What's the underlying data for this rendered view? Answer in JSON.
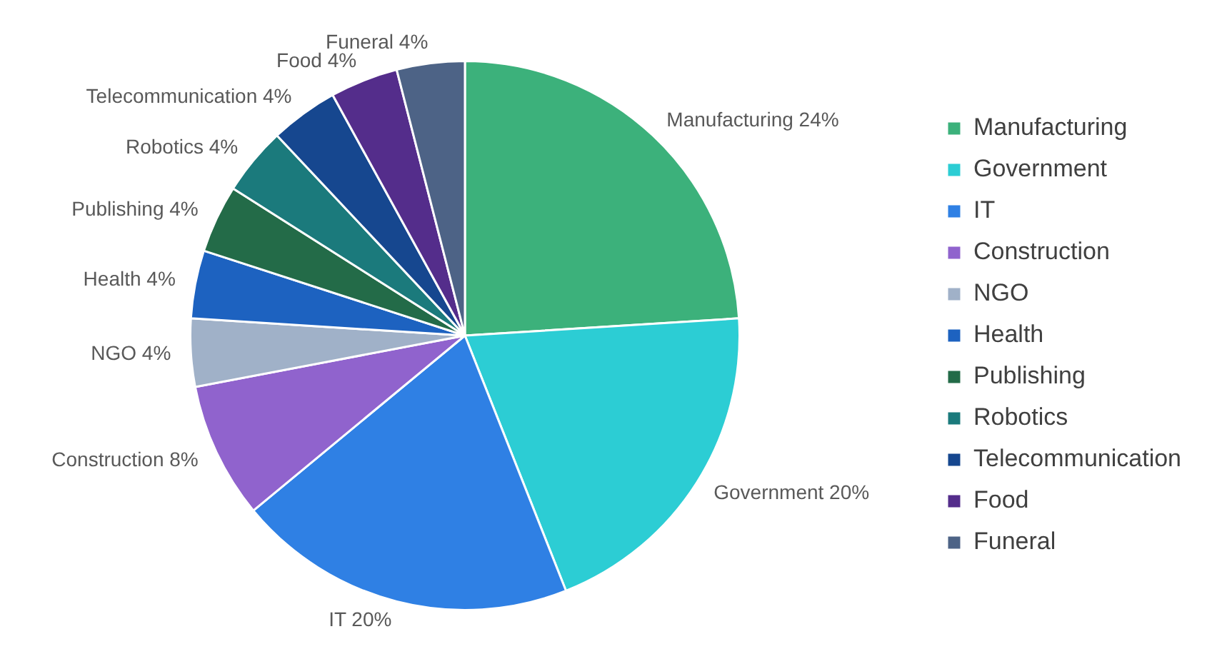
{
  "chart_data": {
    "type": "pie",
    "categories": [
      "Manufacturing",
      "Government",
      "IT",
      "Construction",
      "NGO",
      "Health",
      "Publishing",
      "Robotics",
      "Telecommunication",
      "Food",
      "Funeral"
    ],
    "values": [
      24,
      20,
      20,
      8,
      4,
      4,
      4,
      4,
      4,
      4,
      4
    ],
    "colors": [
      "#3cb17b",
      "#2ccdd4",
      "#2f80e4",
      "#9063cd",
      "#a0b1c8",
      "#1d62c0",
      "#236b48",
      "#1b7a7c",
      "#16478f",
      "#542d8b",
      "#4d6386"
    ],
    "value_labels": [
      "Manufacturing 24%",
      "Government 20%",
      "IT 20%",
      "Construction 8%",
      "NGO 4%",
      "Health 4%",
      "Publishing 4%",
      "Robotics 4%",
      "Telecommunication 4%",
      "Food 4%",
      "Funeral 4%"
    ],
    "legend": "right"
  }
}
